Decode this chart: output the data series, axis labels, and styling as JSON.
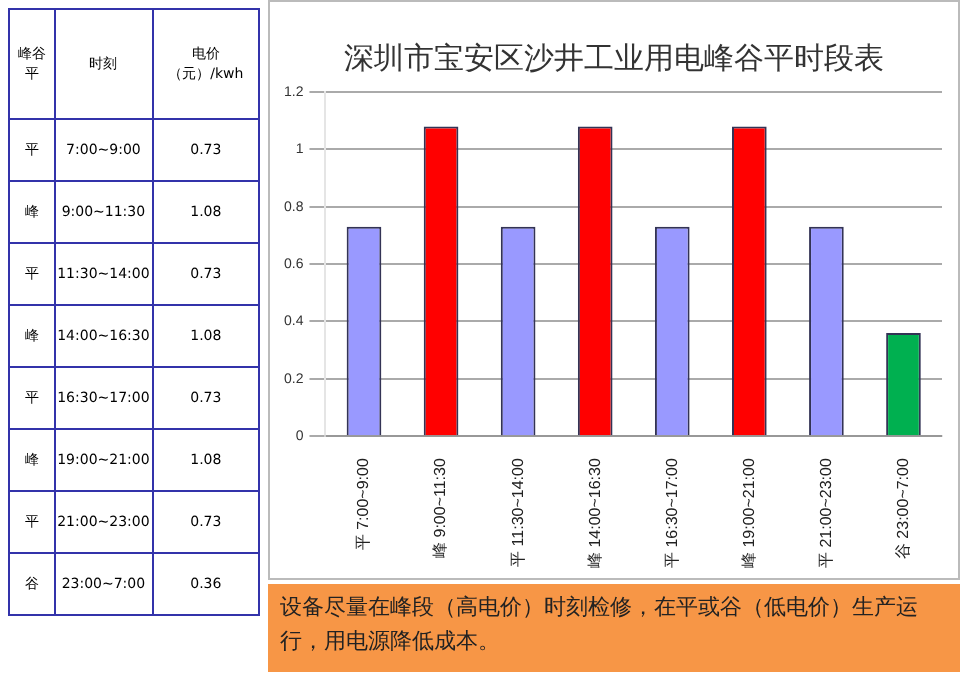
{
  "chart_data": [
    {
      "type": "other",
      "annotations": [
        "峰谷平",
        "时刻",
        "电价（元）/kwh",
        "平",
        "7:00~9:00",
        "0.73",
        "峰",
        "9:00~11:30",
        "1.08",
        "平",
        "11:30~14:00",
        "0.73",
        "峰",
        "14:00~16:30",
        "1.08",
        "平",
        "16:30~17:00",
        "0.73",
        "峰",
        "19:00~21:00",
        "1.08",
        "平",
        "21:00~23:00",
        "0.73",
        "谷",
        "23:00~7:00",
        "0.36"
      ]
    },
    {
      "type": "bar",
      "title": "深圳市宝安区沙井工业用电峰谷平时段表",
      "categories": [
        "平 7:00~9:00",
        "峰 9:00~11:30",
        "平 11:30~14:00",
        "峰 14:00~16:30",
        "平 16:30~17:00",
        "峰 19:00~21:00",
        "平 21:00~23:00",
        "谷 23:00~7:00"
      ],
      "values": [
        0.73,
        1.08,
        0.73,
        1.08,
        0.73,
        1.08,
        0.73,
        0.36
      ],
      "colors": [
        "#9999ff",
        "#ff0000",
        "#9999ff",
        "#ff0000",
        "#9999ff",
        "#ff0000",
        "#9999ff",
        "#00b050"
      ],
      "ylim": [
        0,
        1.2
      ],
      "yticks": [
        0,
        0.2,
        0.4,
        0.6,
        0.8,
        1,
        1.2
      ],
      "grid": "y",
      "annotations": [
        "设备尽量在峰段（高电价）时刻检修，在平或谷（低电价）生产运行，用电源降低成本。"
      ]
    }
  ]
}
